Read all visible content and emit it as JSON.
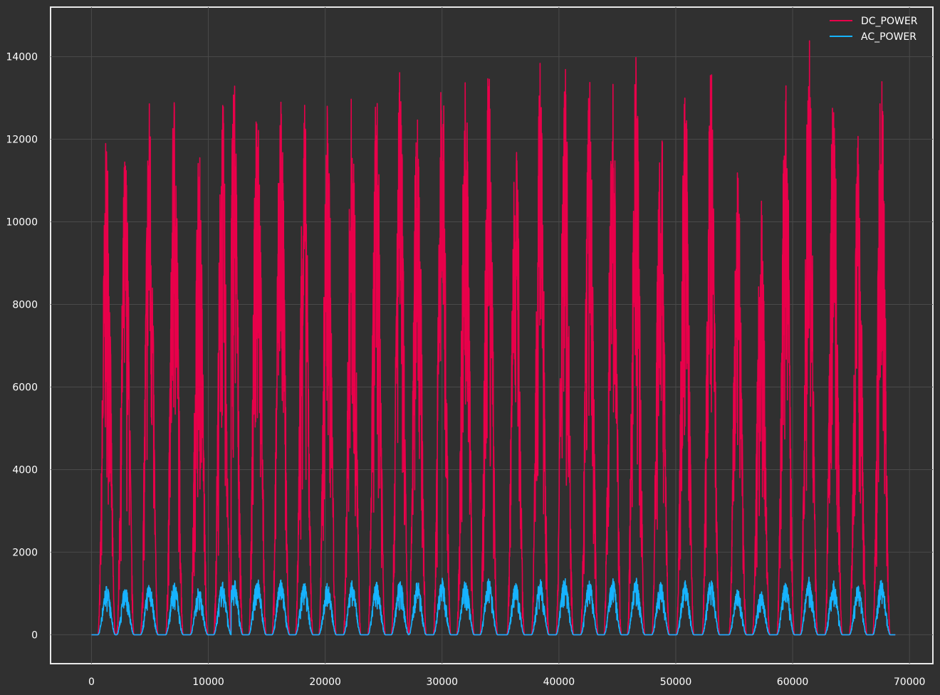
{
  "chart_data": {
    "type": "line",
    "title": "",
    "xlabel": "",
    "ylabel": "",
    "xlim": [
      -3500,
      72000
    ],
    "ylim": [
      -700,
      15200
    ],
    "x_ticks": [
      0,
      10000,
      20000,
      30000,
      40000,
      50000,
      60000,
      70000
    ],
    "y_ticks": [
      0,
      2000,
      4000,
      6000,
      8000,
      10000,
      12000,
      14000
    ],
    "x_tick_labels": [
      "0",
      "10000",
      "20000",
      "30000",
      "40000",
      "50000",
      "60000",
      "70000"
    ],
    "y_tick_labels": [
      "0",
      "2000",
      "4000",
      "6000",
      "8000",
      "10000",
      "12000",
      "14000"
    ],
    "grid": true,
    "legend_position": "top-right",
    "x_range_of_series": [
      0,
      68800
    ],
    "daily_cycles": [
      {
        "center": 1300,
        "dc_peak": 12300,
        "ac_peak": 1200
      },
      {
        "center": 2900,
        "dc_peak": 12000,
        "ac_peak": 1170
      },
      {
        "center": 4950,
        "dc_peak": 13200,
        "ac_peak": 1290
      },
      {
        "center": 7100,
        "dc_peak": 13400,
        "ac_peak": 1310
      },
      {
        "center": 9200,
        "dc_peak": 11900,
        "ac_peak": 1170
      },
      {
        "center": 11200,
        "dc_peak": 13200,
        "ac_peak": 1290
      },
      {
        "center": 12200,
        "dc_peak": 14000,
        "ac_peak": 1370
      },
      {
        "center": 14200,
        "dc_peak": 14300,
        "ac_peak": 1390
      },
      {
        "center": 16200,
        "dc_peak": 13800,
        "ac_peak": 1350
      },
      {
        "center": 18200,
        "dc_peak": 13300,
        "ac_peak": 1300
      },
      {
        "center": 20200,
        "dc_peak": 13000,
        "ac_peak": 1270
      },
      {
        "center": 22300,
        "dc_peak": 13400,
        "ac_peak": 1310
      },
      {
        "center": 24400,
        "dc_peak": 13400,
        "ac_peak": 1310
      },
      {
        "center": 26400,
        "dc_peak": 13800,
        "ac_peak": 1340
      },
      {
        "center": 27900,
        "dc_peak": 13700,
        "ac_peak": 1300
      },
      {
        "center": 30000,
        "dc_peak": 14200,
        "ac_peak": 1380
      },
      {
        "center": 32000,
        "dc_peak": 13800,
        "ac_peak": 1340
      },
      {
        "center": 34000,
        "dc_peak": 14000,
        "ac_peak": 1360
      },
      {
        "center": 36300,
        "dc_peak": 13000,
        "ac_peak": 1260
      },
      {
        "center": 38400,
        "dc_peak": 13900,
        "ac_peak": 1350
      },
      {
        "center": 40500,
        "dc_peak": 14400,
        "ac_peak": 1400
      },
      {
        "center": 42600,
        "dc_peak": 13600,
        "ac_peak": 1330
      },
      {
        "center": 44600,
        "dc_peak": 13900,
        "ac_peak": 1360
      },
      {
        "center": 46600,
        "dc_peak": 14100,
        "ac_peak": 1380
      },
      {
        "center": 48700,
        "dc_peak": 13300,
        "ac_peak": 1300
      },
      {
        "center": 50800,
        "dc_peak": 13700,
        "ac_peak": 1330
      },
      {
        "center": 53000,
        "dc_peak": 13900,
        "ac_peak": 1360
      },
      {
        "center": 55300,
        "dc_peak": 11300,
        "ac_peak": 1100
      },
      {
        "center": 57300,
        "dc_peak": 10800,
        "ac_peak": 1060
      },
      {
        "center": 59400,
        "dc_peak": 13700,
        "ac_peak": 1340
      },
      {
        "center": 61400,
        "dc_peak": 14500,
        "ac_peak": 1410
      },
      {
        "center": 63500,
        "dc_peak": 13600,
        "ac_peak": 1320
      },
      {
        "center": 65600,
        "dc_peak": 12300,
        "ac_peak": 1220
      },
      {
        "center": 67600,
        "dc_peak": 13900,
        "ac_peak": 1350
      }
    ],
    "cycle_half_width": 750,
    "series": [
      {
        "name": "DC_POWER",
        "color": "#e8004a"
      },
      {
        "name": "AC_POWER",
        "color": "#16b3ff"
      }
    ]
  }
}
